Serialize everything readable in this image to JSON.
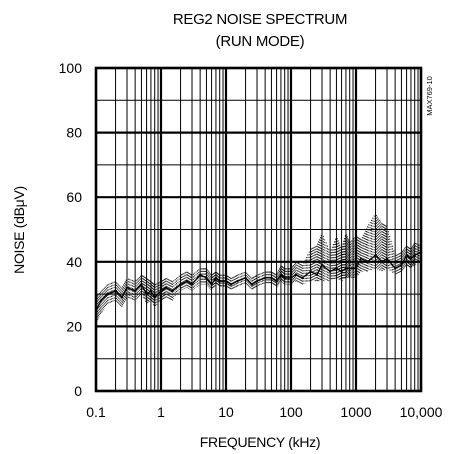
{
  "chart_data": {
    "type": "line",
    "title": "REG2 NOISE SPECTRUM",
    "subtitle": "(RUN MODE)",
    "xlabel": "FREQUENCY (kHz)",
    "ylabel": "NOISE (dBμV)",
    "x_scale": "log",
    "xlim": [
      0.1,
      10000
    ],
    "ylim": [
      0,
      100
    ],
    "x_ticks": [
      0.1,
      1,
      10,
      100,
      1000,
      10000
    ],
    "x_tick_labels": [
      "0.1",
      "1",
      "10",
      "100",
      "1000",
      "10,000"
    ],
    "y_ticks": [
      0,
      20,
      40,
      60,
      80,
      100
    ],
    "y_tick_labels": [
      "0",
      "20",
      "40",
      "60",
      "80",
      "100"
    ],
    "grid": true,
    "annotation": "MAX769-10",
    "series": [
      {
        "x": [
          0.1,
          0.12,
          0.15,
          0.2,
          0.25,
          0.3,
          0.4,
          0.5,
          0.6,
          0.7,
          0.8,
          1,
          1.2,
          1.5,
          2,
          2.5,
          3,
          4,
          5,
          6,
          7,
          8,
          10,
          12,
          15,
          20,
          25,
          30,
          40,
          50,
          60,
          70,
          80,
          100,
          120,
          150,
          200,
          250,
          300,
          400,
          500,
          600,
          700,
          800,
          1000,
          1200,
          1500,
          2000,
          2500,
          3000,
          4000,
          5000,
          6000,
          7000,
          8000,
          10000
        ],
        "y": [
          25,
          28,
          30,
          31,
          29,
          32,
          31,
          33,
          30,
          31,
          29,
          31,
          32,
          31,
          33,
          34,
          33,
          36,
          35,
          33,
          35,
          34,
          34,
          33,
          34,
          35,
          33,
          34,
          35,
          35,
          34,
          36,
          35,
          35,
          36,
          35,
          37,
          36,
          39,
          37,
          38,
          37,
          38,
          38,
          38,
          41,
          40,
          42,
          40,
          41,
          38,
          39,
          42,
          41,
          42,
          43
        ],
        "y_high": [
          29,
          31,
          33,
          34,
          32,
          35,
          34,
          36,
          35,
          34,
          33,
          34,
          35,
          34,
          36,
          37,
          36,
          38,
          38,
          36,
          37,
          36,
          36,
          35,
          36,
          37,
          35,
          36,
          37,
          37,
          36,
          39,
          38,
          38,
          40,
          39,
          44,
          45,
          49,
          43,
          48,
          44,
          49,
          46,
          48,
          47,
          51,
          55,
          52,
          51,
          42,
          43,
          45,
          44,
          46,
          45
        ],
        "y_low": [
          21,
          24,
          27,
          28,
          26,
          29,
          28,
          30,
          27,
          28,
          26,
          28,
          29,
          28,
          31,
          32,
          31,
          33,
          33,
          31,
          33,
          32,
          32,
          31,
          32,
          33,
          31,
          32,
          33,
          33,
          32,
          34,
          33,
          33,
          34,
          33,
          34,
          34,
          34,
          34,
          35,
          34,
          35,
          35,
          35,
          37,
          37,
          38,
          37,
          38,
          36,
          37,
          39,
          38,
          39,
          40
        ]
      }
    ]
  }
}
